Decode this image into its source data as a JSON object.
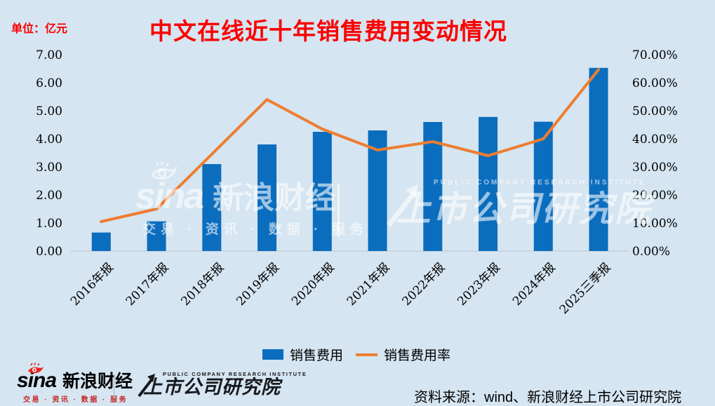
{
  "title": "中文在线近十年销售费用变动情况",
  "unit_label": "单位：亿元",
  "colors": {
    "background": "#d5e5f1",
    "bar": "#0b6dbd",
    "line": "#ed7d31",
    "title": "#fb0000",
    "unit_label": "#fb0000",
    "baseline": "#c4cdd6",
    "axis_text": "#000000",
    "watermark": "rgba(255,255,255,0.6)"
  },
  "chart_data": {
    "type": "bar",
    "combo": "bar+line",
    "title": "中文在线近十年销售费用变动情况",
    "unit": "亿元",
    "grid": false,
    "legend_position": "bottom",
    "categories": [
      "2016年报",
      "2017年报",
      "2018年报",
      "2019年报",
      "2020年报",
      "2021年报",
      "2022年报",
      "2023年报",
      "2024年报",
      "2025三季报"
    ],
    "series": [
      {
        "name": "销售费用",
        "render": "bar",
        "axis": "left",
        "unit": "亿元",
        "color": "#0b6dbd",
        "values": [
          0.66,
          1.06,
          3.1,
          3.8,
          4.25,
          4.3,
          4.6,
          4.78,
          4.61,
          6.53
        ]
      },
      {
        "name": "销售费用率",
        "render": "line",
        "axis": "right",
        "unit": "%",
        "color": "#ed7d31",
        "values": [
          10.5,
          15.0,
          34.5,
          54.0,
          43.5,
          36.0,
          39.0,
          34.0,
          40.0,
          64.7
        ]
      }
    ],
    "left_axis": {
      "min": 0,
      "max": 7,
      "ticks": [
        "7.00",
        "6.00",
        "5.00",
        "4.00",
        "3.00",
        "2.00",
        "1.00",
        "0.00"
      ]
    },
    "right_axis": {
      "min": 0,
      "max": 70,
      "ticks": [
        "70.00%",
        "60.00%",
        "50.00%",
        "40.00%",
        "30.00%",
        "20.00%",
        "10.00%",
        "0.00%"
      ]
    }
  },
  "legend": {
    "bar_label": "销售费用",
    "line_label": "销售费用率"
  },
  "watermarks": {
    "sina_word": "sina",
    "sina_brand": "新浪财经",
    "sina_tagline": "交易 · 资讯 · 数据 · 服务",
    "institute_caps": "PUBLIC COMPANY RESEARCH INSTITUTE",
    "institute_main": "上市公司研究院"
  },
  "footer": {
    "sina_word": "sina",
    "sina_brand": "新浪财经",
    "sina_tagline": "交易 · 资讯 · 数据 · 服务",
    "institute_caps": "PUBLIC COMPANY RESEARCH INSTITUTE",
    "institute_name": "上市公司研究院",
    "source": "资料来源：wind、新浪财经上市公司研究院"
  }
}
